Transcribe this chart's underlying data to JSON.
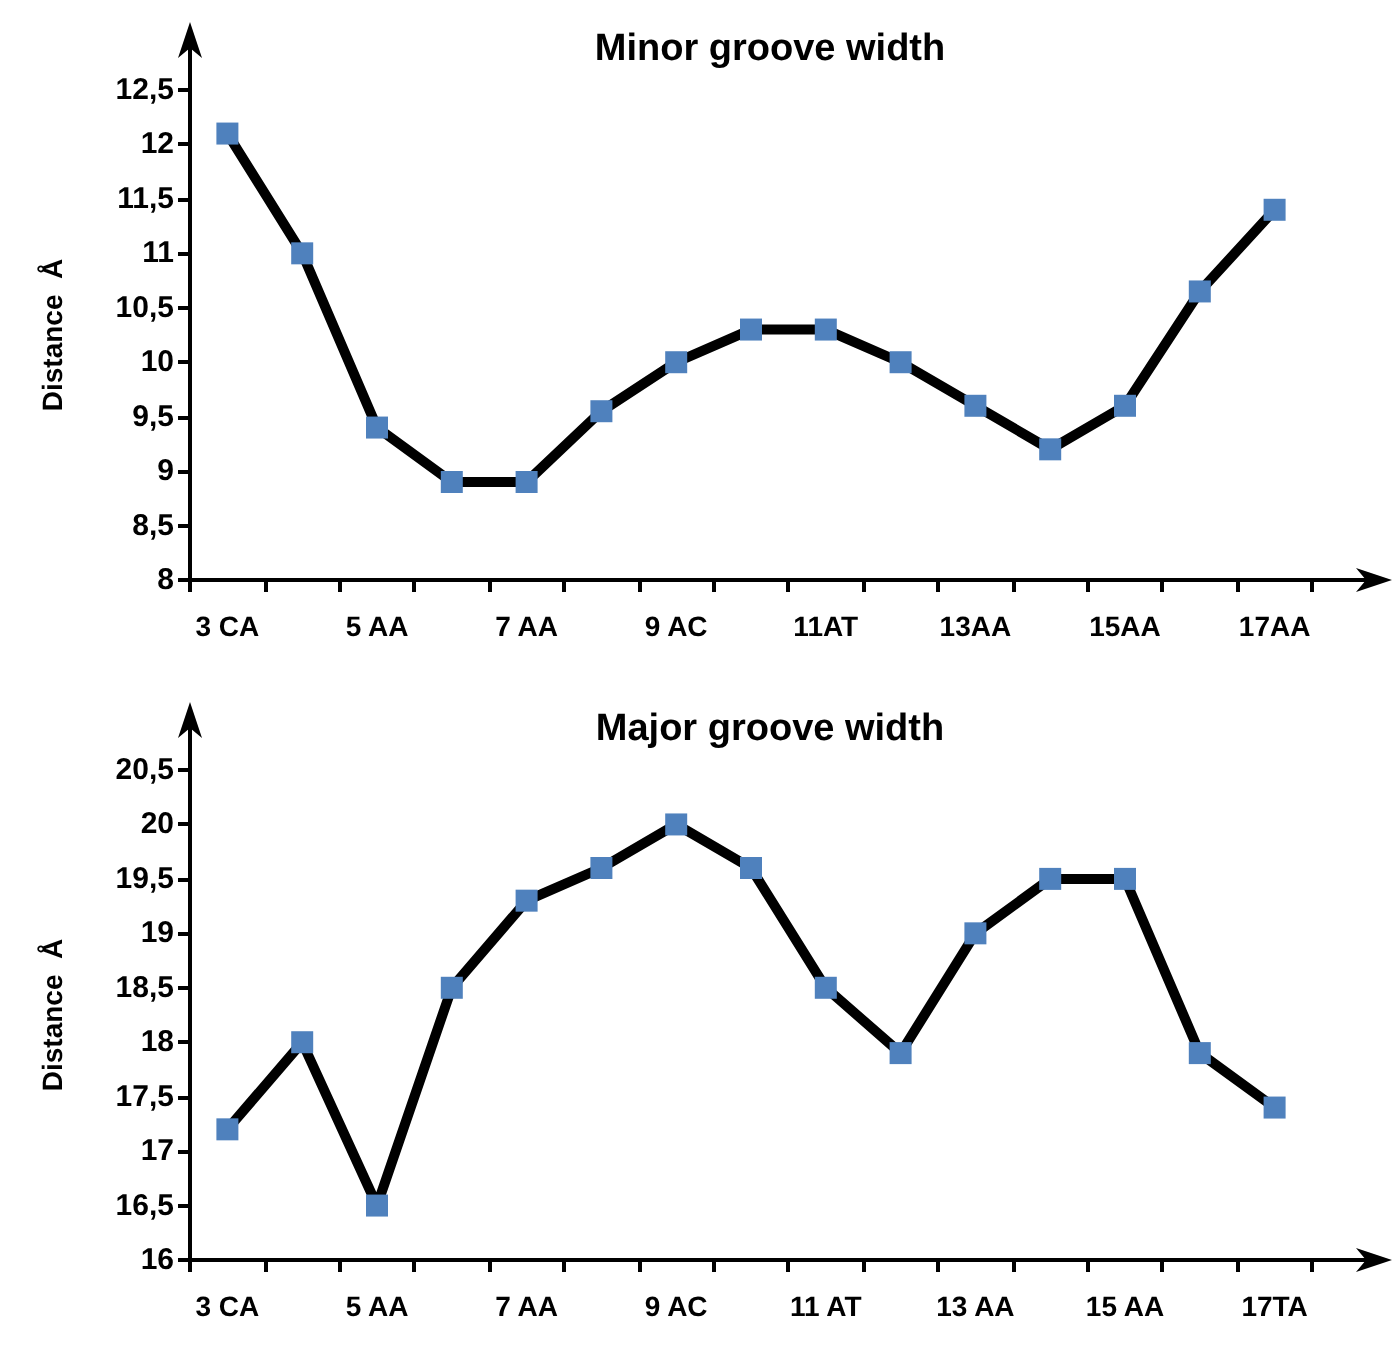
{
  "chart_data": [
    {
      "type": "line",
      "title": "Minor groove width",
      "ylabel": "Distance  Å",
      "categories": [
        "3 CA",
        null,
        "5 AA",
        null,
        "7 AA",
        null,
        "9 AC",
        null,
        "11AT",
        null,
        "13AA",
        null,
        "15AA",
        null,
        "17AA"
      ],
      "series": [
        {
          "color": "#4f81bd",
          "values": [
            12.1,
            11.0,
            9.4,
            8.9,
            8.9,
            9.55,
            10.0,
            10.3,
            10.3,
            10.0,
            9.6,
            9.2,
            9.6,
            10.65,
            11.4
          ]
        }
      ],
      "ylim": [
        8,
        12.5
      ],
      "yticks": [
        8,
        {
          "value": 8.5,
          "label": "8,5"
        },
        9,
        {
          "value": 9.5,
          "label": "9,5"
        },
        10,
        {
          "value": 10.5,
          "label": "10,5"
        },
        11,
        {
          "value": 11.5,
          "label": "11,5"
        },
        12,
        {
          "value": 12.5,
          "label": "12,5"
        }
      ],
      "grid": false,
      "marker": "square",
      "line_style": "solid"
    },
    {
      "type": "line",
      "title": "Major groove width",
      "ylabel": "Distance  Å",
      "categories": [
        "3 CA",
        null,
        "5 AA",
        null,
        "7 AA",
        null,
        "9 AC",
        null,
        "11 AT",
        null,
        "13 AA",
        null,
        "15 AA",
        null,
        "17TA"
      ],
      "series": [
        {
          "color": "#4f81bd",
          "values": [
            17.2,
            18.0,
            16.5,
            18.5,
            19.3,
            19.6,
            20.0,
            19.6,
            18.5,
            17.9,
            19.0,
            19.5,
            19.5,
            17.9,
            17.4
          ]
        }
      ],
      "ylim": [
        16,
        20.5
      ],
      "yticks": [
        16,
        {
          "value": 16.5,
          "label": "16,5"
        },
        17,
        {
          "value": 17.5,
          "label": "17,5"
        },
        18,
        {
          "value": 18.5,
          "label": "18,5"
        },
        19,
        {
          "value": 19.5,
          "label": "19,5"
        },
        20,
        {
          "value": 20.5,
          "label": "20,5"
        }
      ],
      "grid": false,
      "marker": "square",
      "line_style": "solid"
    }
  ]
}
